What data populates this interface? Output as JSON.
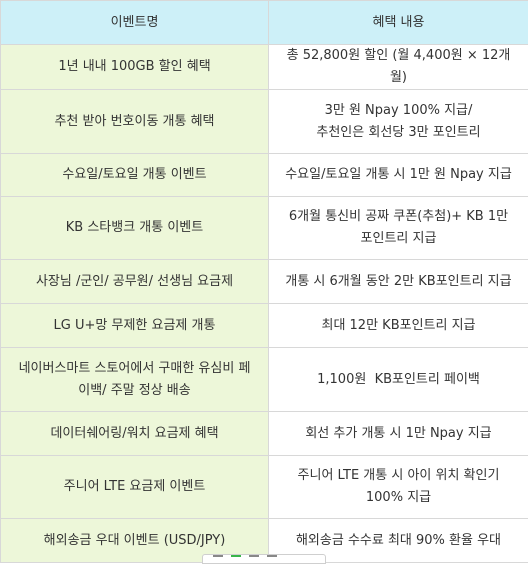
{
  "table": {
    "headers": [
      "이벤트명",
      "혜택 내용"
    ],
    "rows": [
      {
        "event": "1년 내내 100GB 할인 혜택",
        "benefit": "총 52,800원 할인 (월 4,400원 × 12개월)"
      },
      {
        "event": "추천 받아 번호이동 개통 혜택",
        "benefit": "3만 원 Npay 100% 지급/\n추천인은 회선당 3만 포인트리"
      },
      {
        "event": "수요일/토요일 개통 이벤트",
        "benefit": "수요일/토요일 개통 시 1만 원 Npay 지급"
      },
      {
        "event": "KB 스타뱅크 개통 이벤트",
        "benefit": "6개월 통신비 공짜 쿠폰(추첨)+ KB 1만 포인트리 지급"
      },
      {
        "event": "사장님 /군인/ 공무원/ 선생님 요금제",
        "benefit": "개통 시 6개월 동안 2만 KB포인트리 지급"
      },
      {
        "event": "LG U+망 무제한 요금제 개통",
        "benefit": "최대 12만 KB포인트리 지급"
      },
      {
        "event": "네이버스마트 스토어에서 구매한 유심비 페이백/ 주말 정상 배송",
        "benefit": "1,100원  KB포인트리 페이백"
      },
      {
        "event": "데이터쉐어링/워치 요금제 혜택",
        "benefit": "회선 추가 개통 시 1만 Npay 지급"
      },
      {
        "event": "주니어 LTE 요금제 이벤트",
        "benefit": "주니어 LTE 개통 시 아이 위치 확인기 100% 지급"
      },
      {
        "event": "해외송금 우대 이벤트 (USD/JPY)",
        "benefit": "해외송금 수수료 최대 90% 환율 우대"
      }
    ]
  },
  "toolbar": {
    "icons": [
      "minus-icon",
      "line-icon",
      "line-icon",
      "line-icon"
    ],
    "accent_color": "#39b54a"
  }
}
